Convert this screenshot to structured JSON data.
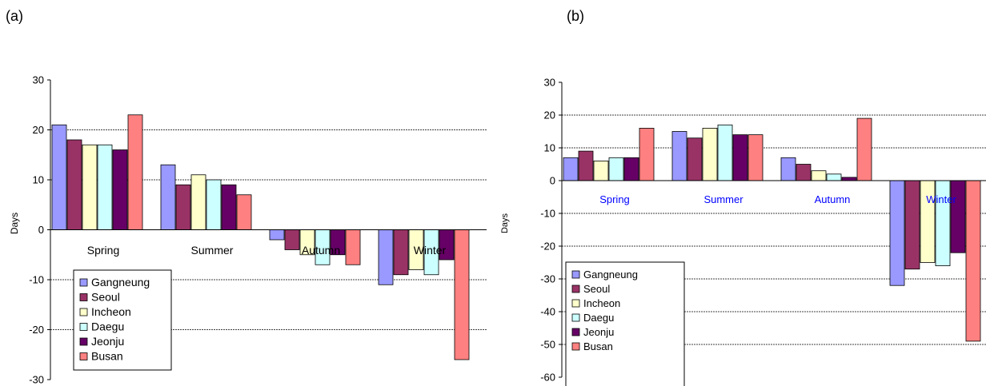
{
  "chart_data": [
    {
      "panel_label": "(a)",
      "type": "bar",
      "categories": [
        "Spring",
        "Summer",
        "Autumn",
        "Winter"
      ],
      "series": [
        {
          "name": "Gangneung",
          "values": [
            21,
            13,
            -2,
            -11
          ]
        },
        {
          "name": "Seoul",
          "values": [
            18,
            9,
            -4,
            -9
          ]
        },
        {
          "name": "Incheon",
          "values": [
            17,
            11,
            -5,
            -8
          ]
        },
        {
          "name": "Daegu",
          "values": [
            17,
            10,
            -7,
            -9
          ]
        },
        {
          "name": "Jeonju",
          "values": [
            16,
            9,
            -5,
            -6
          ]
        },
        {
          "name": "Busan",
          "values": [
            23,
            7,
            -7,
            -26
          ]
        }
      ],
      "colors": [
        "#9999ff",
        "#993366",
        "#ffffcc",
        "#ccffff",
        "#660066",
        "#ff8080"
      ],
      "ylabel": "Days",
      "ylim": [
        -30,
        30
      ],
      "yticks": [
        "-30",
        "-20",
        "-10",
        "0",
        "10",
        "20",
        "30"
      ],
      "grid": "horizontal dashed",
      "legend_position": "bottom-left",
      "category_label_color": "#000000"
    },
    {
      "panel_label": "(b)",
      "type": "bar",
      "categories": [
        "Spring",
        "Summer",
        "Autumn",
        "Winter"
      ],
      "series": [
        {
          "name": "Gangneung",
          "values": [
            7,
            15,
            7,
            -32
          ]
        },
        {
          "name": "Seoul",
          "values": [
            9,
            13,
            5,
            -27
          ]
        },
        {
          "name": "Incheon",
          "values": [
            6,
            16,
            3,
            -25
          ]
        },
        {
          "name": "Daegu",
          "values": [
            7,
            17,
            2,
            -26
          ]
        },
        {
          "name": "Jeonju",
          "values": [
            7,
            14,
            1,
            -22
          ]
        },
        {
          "name": "Busan",
          "values": [
            16,
            14,
            19,
            -49
          ]
        }
      ],
      "colors": [
        "#9999ff",
        "#993366",
        "#ffffcc",
        "#ccffff",
        "#660066",
        "#ff8080"
      ],
      "ylabel": "Days",
      "ylim": [
        -60,
        30
      ],
      "yticks": [
        "-60",
        "-50",
        "-40",
        "-30",
        "-20",
        "-10",
        "0",
        "10",
        "20",
        "30"
      ],
      "grid": "horizontal dashed",
      "legend_position": "bottom-left",
      "category_label_color": "#0000ff"
    }
  ]
}
